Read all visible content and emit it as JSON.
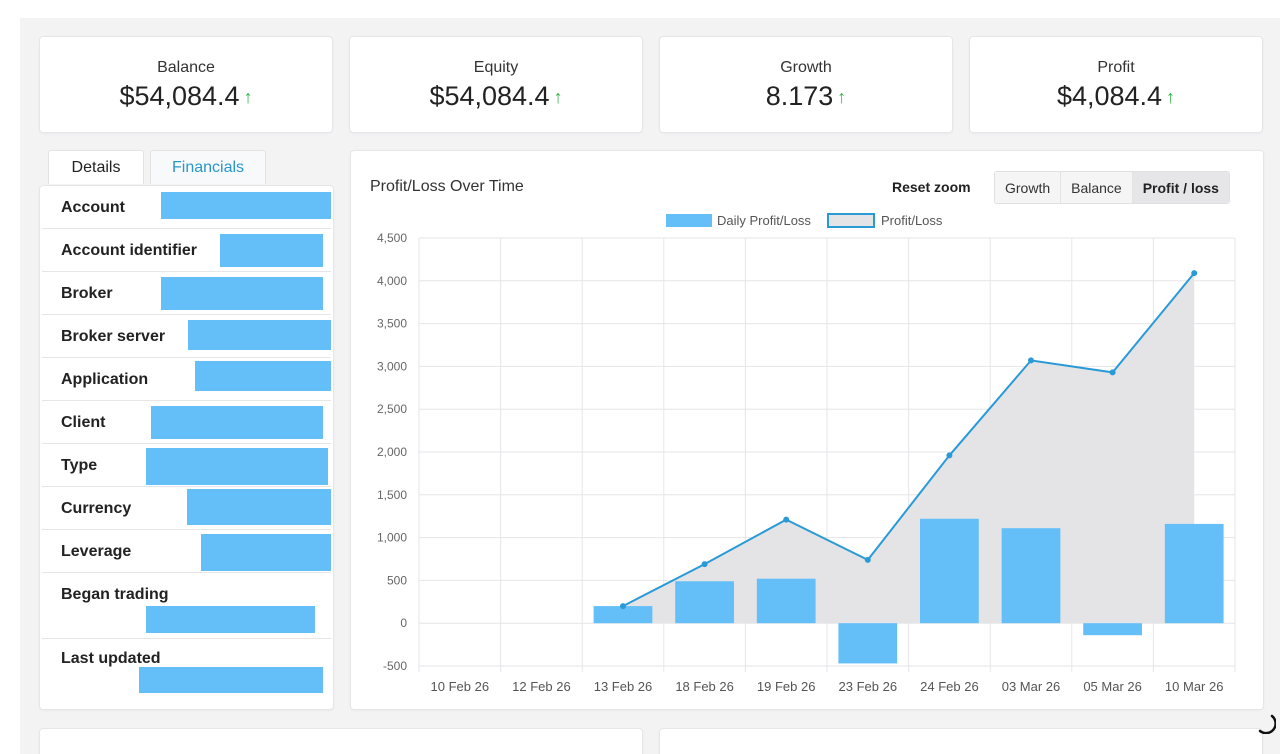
{
  "stats": [
    {
      "label": "Balance",
      "value": "$54,084.4",
      "trend": "↑"
    },
    {
      "label": "Equity",
      "value": "$54,084.4",
      "trend": "↑"
    },
    {
      "label": "Growth",
      "value": "8.173",
      "trend": "↑"
    },
    {
      "label": "Profit",
      "value": "$4,084.4",
      "trend": "↑"
    }
  ],
  "tabs": {
    "details": "Details",
    "financials": "Financials"
  },
  "details": [
    {
      "label": "Account"
    },
    {
      "label": "Account identifier"
    },
    {
      "label": "Broker"
    },
    {
      "label": "Broker server"
    },
    {
      "label": "Application"
    },
    {
      "label": "Client"
    },
    {
      "label": "Type"
    },
    {
      "label": "Currency"
    },
    {
      "label": "Leverage"
    },
    {
      "label": "Began trading"
    },
    {
      "label": "Last updated"
    }
  ],
  "chart": {
    "title": "Profit/Loss Over Time",
    "reset_zoom": "Reset zoom",
    "buttons": [
      "Growth",
      "Balance",
      "Profit / loss"
    ],
    "active_button": "Profit / loss"
  },
  "colors": {
    "bar": "#64bff8",
    "line": "#2a9ad6",
    "area": "#e4e4e6",
    "up_arrow": "#2fb344"
  },
  "chart_data": {
    "type": "bar",
    "categories": [
      "10 Feb 26",
      "12 Feb 26",
      "13 Feb 26",
      "18 Feb 26",
      "19 Feb 26",
      "23 Feb 26",
      "24 Feb 26",
      "03 Mar 26",
      "05 Mar 26",
      "10 Mar 26"
    ],
    "series": [
      {
        "name": "Daily Profit/Loss",
        "kind": "bar",
        "values": [
          0,
          0,
          200,
          490,
          520,
          -470,
          1220,
          1110,
          -140,
          1160
        ]
      },
      {
        "name": "Profit/Loss",
        "kind": "area-line",
        "values": [
          null,
          null,
          200,
          690,
          1210,
          740,
          1960,
          3070,
          2930,
          4090
        ]
      }
    ],
    "ylim": [
      -500,
      4500
    ],
    "yticks": [
      "-500",
      "0",
      "500",
      "1,000",
      "1,500",
      "2,000",
      "2,500",
      "3,000",
      "3,500",
      "4,000",
      "4,500"
    ],
    "grid": true,
    "legend": "top-center"
  }
}
